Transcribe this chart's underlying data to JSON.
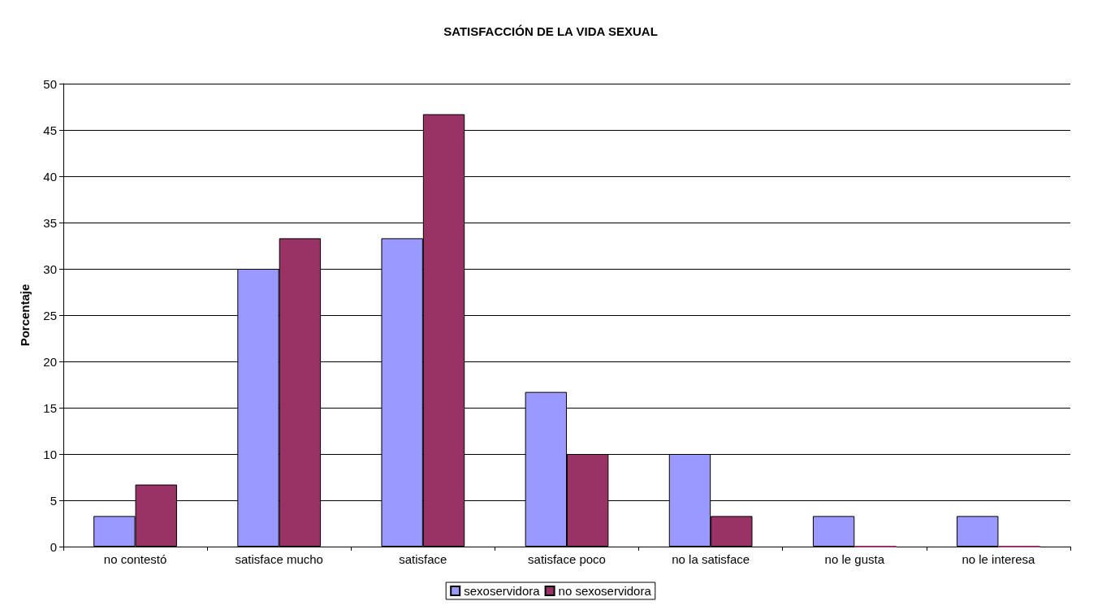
{
  "chart_data": {
    "type": "bar",
    "title": "SATISFACCIÓN DE LA VIDA SEXUAL",
    "ylabel": "Porcentaje",
    "categories": [
      "no contestó",
      "satisface mucho",
      "satisface",
      "satisface poco",
      "no la satisface",
      "no le gusta",
      "no le interesa"
    ],
    "series": [
      {
        "name": "sexoservidora",
        "color": "#9999ff",
        "values": [
          3.3,
          30,
          33.3,
          16.7,
          10,
          3.3,
          3.3
        ]
      },
      {
        "name": "no sexoservidora",
        "color": "#993366",
        "values": [
          6.7,
          33.3,
          46.7,
          10,
          3.3,
          0,
          0
        ]
      }
    ],
    "ylim": [
      0,
      50
    ],
    "yticks": [
      0,
      5,
      10,
      15,
      20,
      25,
      30,
      35,
      40,
      45,
      50
    ],
    "grid": "y",
    "legend": "bottom"
  }
}
